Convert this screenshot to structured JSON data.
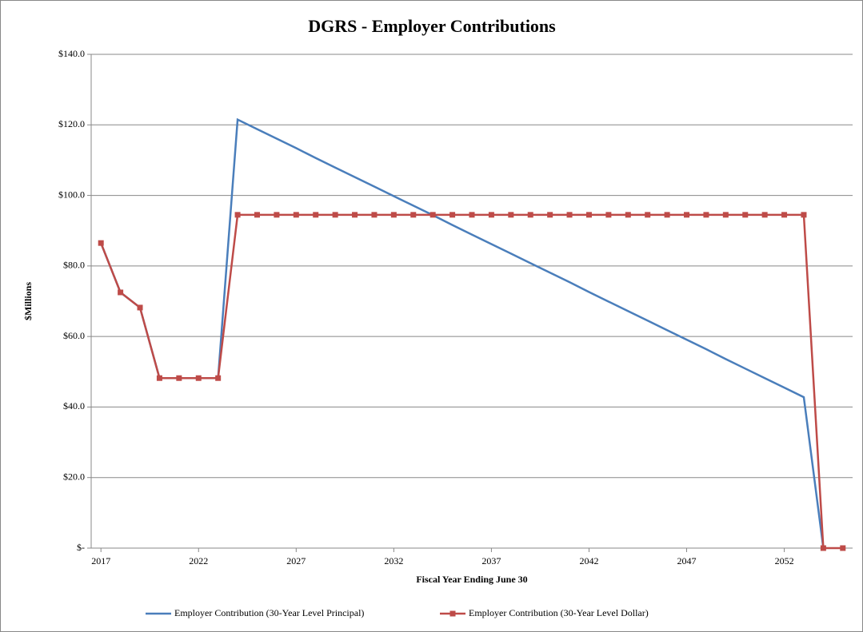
{
  "chart_data": {
    "type": "line",
    "title": "DGRS - Employer Contributions",
    "x_label": "Fiscal Year Ending June 30",
    "y_label": "$Millions",
    "x": [
      2017,
      2018,
      2019,
      2020,
      2021,
      2022,
      2023,
      2024,
      2025,
      2026,
      2027,
      2028,
      2029,
      2030,
      2031,
      2032,
      2033,
      2034,
      2035,
      2036,
      2037,
      2038,
      2039,
      2040,
      2041,
      2042,
      2043,
      2044,
      2045,
      2046,
      2047,
      2048,
      2049,
      2050,
      2051,
      2052,
      2053,
      2054,
      2055
    ],
    "xlim": [
      2016.5,
      2055.5
    ],
    "xticks": [
      2017,
      2022,
      2027,
      2032,
      2037,
      2042,
      2047,
      2052
    ],
    "ylim": [
      0,
      140
    ],
    "yticks": [
      {
        "value": 0,
        "label": "$-"
      },
      {
        "value": 20,
        "label": "$20.0"
      },
      {
        "value": 40,
        "label": "$40.0"
      },
      {
        "value": 60,
        "label": "$60.0"
      },
      {
        "value": 80,
        "label": "$80.0"
      },
      {
        "value": 100,
        "label": "$100.0"
      },
      {
        "value": 120,
        "label": "$120.0"
      },
      {
        "value": 140,
        "label": "$140.0"
      }
    ],
    "grid": true,
    "legend": "bottom",
    "series": [
      {
        "name": "Employer Contribution (30-Year Level Principal)",
        "color": "#4a7ebb",
        "marker": "none",
        "values": [
          86.5,
          72.5,
          68.2,
          48.2,
          48.2,
          48.2,
          48.2,
          121.5,
          118.8,
          116.1,
          113.4,
          110.6,
          107.9,
          105.2,
          102.5,
          99.8,
          97.1,
          94.4,
          91.6,
          88.9,
          86.2,
          83.5,
          80.8,
          78.1,
          75.4,
          72.6,
          69.9,
          67.2,
          64.5,
          61.8,
          59.1,
          56.4,
          53.6,
          50.9,
          48.2,
          45.5,
          42.8,
          0,
          null
        ]
      },
      {
        "name": "Employer Contribution (30-Year Level Dollar)",
        "color": "#be4b48",
        "marker": "square",
        "values": [
          86.5,
          72.5,
          68.2,
          48.2,
          48.2,
          48.2,
          48.2,
          94.5,
          94.5,
          94.5,
          94.5,
          94.5,
          94.5,
          94.5,
          94.5,
          94.5,
          94.5,
          94.5,
          94.5,
          94.5,
          94.5,
          94.5,
          94.5,
          94.5,
          94.5,
          94.5,
          94.5,
          94.5,
          94.5,
          94.5,
          94.5,
          94.5,
          94.5,
          94.5,
          94.5,
          94.5,
          94.5,
          0,
          0
        ]
      }
    ]
  }
}
